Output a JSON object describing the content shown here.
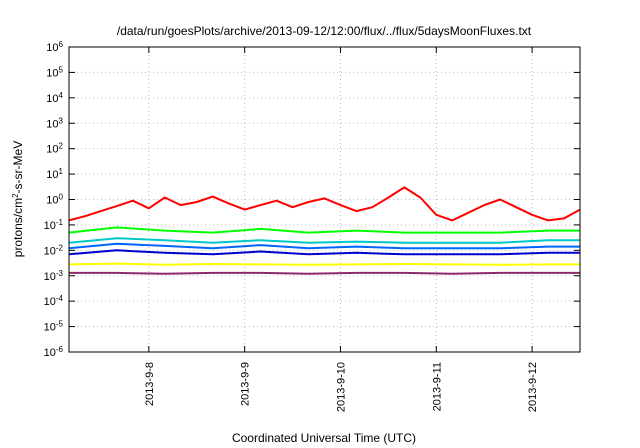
{
  "chart_data": {
    "type": "line",
    "title": "/data/run/goesPlots/archive/2013-09-12/12:00/flux/../flux/5daysMoonFluxes.txt",
    "xlabel": "Coordinated Universal Time (UTC)",
    "ylabel": {
      "pre": "protons/cm",
      "sup": "2",
      "post": "-s-sr-MeV"
    },
    "y_scale": "log",
    "ylim": [
      1e-06,
      1000000.0
    ],
    "xlim": [
      "2013-09-07 04:00",
      "2013-09-12 12:00"
    ],
    "y_ticks": [
      {
        "base": "10",
        "exp": "-6",
        "value": 1e-06
      },
      {
        "base": "10",
        "exp": "-5",
        "value": 1e-05
      },
      {
        "base": "10",
        "exp": "-4",
        "value": 0.0001
      },
      {
        "base": "10",
        "exp": "-3",
        "value": 0.001
      },
      {
        "base": "10",
        "exp": "-2",
        "value": 0.01
      },
      {
        "base": "10",
        "exp": "-1",
        "value": 0.1
      },
      {
        "base": "10",
        "exp": "0",
        "value": 1.0
      },
      {
        "base": "10",
        "exp": "1",
        "value": 10.0
      },
      {
        "base": "10",
        "exp": "2",
        "value": 100.0
      },
      {
        "base": "10",
        "exp": "3",
        "value": 1000.0
      },
      {
        "base": "10",
        "exp": "4",
        "value": 10000.0
      },
      {
        "base": "10",
        "exp": "5",
        "value": 100000.0
      },
      {
        "base": "10",
        "exp": "6",
        "value": 1000000.0
      }
    ],
    "x_ticks": [
      {
        "label": "2013-9-8",
        "value": "2013-09-08 00:00"
      },
      {
        "label": "2013-9-9",
        "value": "2013-09-09 00:00"
      },
      {
        "label": "2013-9-10",
        "value": "2013-09-10 00:00"
      },
      {
        "label": "2013-9-11",
        "value": "2013-09-11 00:00"
      },
      {
        "label": "2013-9-12",
        "value": "2013-09-12 00:00"
      }
    ],
    "grid": true,
    "series": [
      {
        "color": "#ff0000",
        "x": [
          "2013-09-07 04:00",
          "2013-09-07 08:00",
          "2013-09-07 12:00",
          "2013-09-07 16:00",
          "2013-09-07 20:00",
          "2013-09-08 00:00",
          "2013-09-08 04:00",
          "2013-09-08 08:00",
          "2013-09-08 12:00",
          "2013-09-08 16:00",
          "2013-09-08 20:00",
          "2013-09-09 00:00",
          "2013-09-09 04:00",
          "2013-09-09 08:00",
          "2013-09-09 12:00",
          "2013-09-09 16:00",
          "2013-09-09 20:00",
          "2013-09-10 00:00",
          "2013-09-10 04:00",
          "2013-09-10 08:00",
          "2013-09-10 12:00",
          "2013-09-10 16:00",
          "2013-09-10 20:00",
          "2013-09-11 00:00",
          "2013-09-11 04:00",
          "2013-09-11 08:00",
          "2013-09-11 12:00",
          "2013-09-11 16:00",
          "2013-09-11 20:00",
          "2013-09-12 00:00",
          "2013-09-12 04:00",
          "2013-09-12 08:00",
          "2013-09-12 12:00"
        ],
        "values": [
          0.15,
          0.22,
          0.35,
          0.55,
          0.9,
          0.45,
          1.2,
          0.6,
          0.8,
          1.3,
          0.7,
          0.4,
          0.6,
          0.9,
          0.5,
          0.8,
          1.1,
          0.6,
          0.35,
          0.5,
          1.2,
          3.0,
          1.2,
          0.25,
          0.15,
          0.3,
          0.6,
          1.0,
          0.5,
          0.25,
          0.15,
          0.18,
          0.4
        ]
      },
      {
        "color": "#00ff00",
        "x": [
          "2013-09-07 04:00",
          "2013-09-07 16:00",
          "2013-09-08 04:00",
          "2013-09-08 16:00",
          "2013-09-09 04:00",
          "2013-09-09 16:00",
          "2013-09-10 04:00",
          "2013-09-10 16:00",
          "2013-09-11 04:00",
          "2013-09-11 16:00",
          "2013-09-12 04:00",
          "2013-09-12 12:00"
        ],
        "values": [
          0.05,
          0.08,
          0.06,
          0.05,
          0.07,
          0.05,
          0.06,
          0.05,
          0.05,
          0.05,
          0.06,
          0.06
        ]
      },
      {
        "color": "#00c8c8",
        "x": [
          "2013-09-07 04:00",
          "2013-09-07 16:00",
          "2013-09-08 04:00",
          "2013-09-08 16:00",
          "2013-09-09 04:00",
          "2013-09-09 16:00",
          "2013-09-10 04:00",
          "2013-09-10 16:00",
          "2013-09-11 04:00",
          "2013-09-11 16:00",
          "2013-09-12 04:00",
          "2013-09-12 12:00"
        ],
        "values": [
          0.02,
          0.03,
          0.025,
          0.02,
          0.025,
          0.02,
          0.022,
          0.02,
          0.02,
          0.02,
          0.025,
          0.025
        ]
      },
      {
        "color": "#0064ff",
        "x": [
          "2013-09-07 04:00",
          "2013-09-07 16:00",
          "2013-09-08 04:00",
          "2013-09-08 16:00",
          "2013-09-09 04:00",
          "2013-09-09 16:00",
          "2013-09-10 04:00",
          "2013-09-10 16:00",
          "2013-09-11 04:00",
          "2013-09-11 16:00",
          "2013-09-12 04:00",
          "2013-09-12 12:00"
        ],
        "values": [
          0.012,
          0.018,
          0.015,
          0.012,
          0.016,
          0.012,
          0.014,
          0.012,
          0.012,
          0.012,
          0.014,
          0.014
        ]
      },
      {
        "color": "#0000cc",
        "x": [
          "2013-09-07 04:00",
          "2013-09-07 16:00",
          "2013-09-08 04:00",
          "2013-09-08 16:00",
          "2013-09-09 04:00",
          "2013-09-09 16:00",
          "2013-09-10 04:00",
          "2013-09-10 16:00",
          "2013-09-11 04:00",
          "2013-09-11 16:00",
          "2013-09-12 04:00",
          "2013-09-12 12:00"
        ],
        "values": [
          0.007,
          0.01,
          0.008,
          0.007,
          0.009,
          0.007,
          0.008,
          0.007,
          0.007,
          0.007,
          0.008,
          0.008
        ]
      },
      {
        "color": "#ffff00",
        "x": [
          "2013-09-07 04:00",
          "2013-09-07 16:00",
          "2013-09-08 04:00",
          "2013-09-08 16:00",
          "2013-09-09 04:00",
          "2013-09-09 16:00",
          "2013-09-10 04:00",
          "2013-09-10 16:00",
          "2013-09-11 04:00",
          "2013-09-11 16:00",
          "2013-09-12 04:00",
          "2013-09-12 12:00"
        ],
        "values": [
          0.0028,
          0.003,
          0.0027,
          0.0029,
          0.0028,
          0.0027,
          0.0028,
          0.0029,
          0.0028,
          0.0027,
          0.0028,
          0.0028
        ]
      },
      {
        "color": "#8b2a6a",
        "x": [
          "2013-09-07 04:00",
          "2013-09-07 16:00",
          "2013-09-08 04:00",
          "2013-09-08 16:00",
          "2013-09-09 04:00",
          "2013-09-09 16:00",
          "2013-09-10 04:00",
          "2013-09-10 16:00",
          "2013-09-11 04:00",
          "2013-09-11 16:00",
          "2013-09-12 04:00",
          "2013-09-12 12:00"
        ],
        "values": [
          0.0013,
          0.0013,
          0.0012,
          0.0013,
          0.0013,
          0.0012,
          0.0013,
          0.0013,
          0.0012,
          0.0013,
          0.0013,
          0.0013
        ]
      }
    ]
  }
}
